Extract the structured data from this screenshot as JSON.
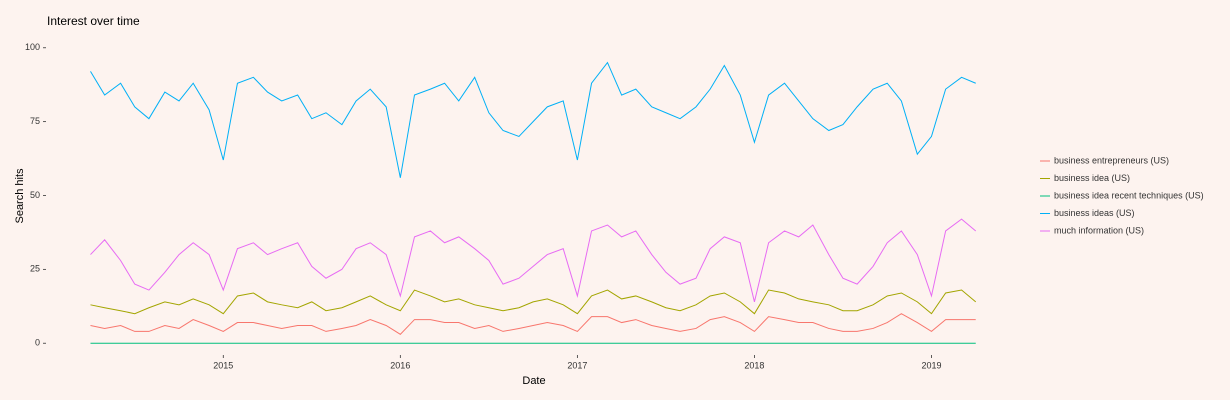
{
  "chart_data": {
    "type": "line",
    "title": "Interest over time",
    "x_label": "Date",
    "y_label": "Search hits",
    "x": [
      2014.25,
      2014.33,
      2014.42,
      2014.5,
      2014.58,
      2014.67,
      2014.75,
      2014.83,
      2014.92,
      2015.0,
      2015.08,
      2015.17,
      2015.25,
      2015.33,
      2015.42,
      2015.5,
      2015.58,
      2015.67,
      2015.75,
      2015.83,
      2015.92,
      2016.0,
      2016.08,
      2016.17,
      2016.25,
      2016.33,
      2016.42,
      2016.5,
      2016.58,
      2016.67,
      2016.75,
      2016.83,
      2016.92,
      2017.0,
      2017.08,
      2017.17,
      2017.25,
      2017.33,
      2017.42,
      2017.5,
      2017.58,
      2017.67,
      2017.75,
      2017.83,
      2017.92,
      2018.0,
      2018.08,
      2018.17,
      2018.25,
      2018.33,
      2018.42,
      2018.5,
      2018.58,
      2018.67,
      2018.75,
      2018.83,
      2018.92,
      2019.0,
      2019.08,
      2019.17,
      2019.25
    ],
    "series": [
      {
        "name": "business entrepreneurs (US)",
        "color": "#F8766D",
        "values": [
          6,
          5,
          6,
          4,
          4,
          6,
          5,
          8,
          6,
          4,
          7,
          7,
          6,
          5,
          6,
          6,
          4,
          5,
          6,
          8,
          6,
          3,
          8,
          8,
          7,
          7,
          5,
          6,
          4,
          5,
          6,
          7,
          6,
          4,
          9,
          9,
          7,
          8,
          6,
          5,
          4,
          5,
          8,
          9,
          7,
          4,
          9,
          8,
          7,
          7,
          5,
          4,
          4,
          5,
          7,
          10,
          7,
          4,
          8,
          8,
          8
        ]
      },
      {
        "name": "business idea (US)",
        "color": "#A3A500",
        "values": [
          13,
          12,
          11,
          10,
          12,
          14,
          13,
          15,
          13,
          10,
          16,
          17,
          14,
          13,
          12,
          14,
          11,
          12,
          14,
          16,
          13,
          11,
          18,
          16,
          14,
          15,
          13,
          12,
          11,
          12,
          14,
          15,
          13,
          10,
          16,
          18,
          15,
          16,
          14,
          12,
          11,
          13,
          16,
          17,
          14,
          10,
          18,
          17,
          15,
          14,
          13,
          11,
          11,
          13,
          16,
          17,
          14,
          10,
          17,
          18,
          14
        ]
      },
      {
        "name": "business idea recent techniques (US)",
        "color": "#00BF7D",
        "values": [
          0,
          0,
          0,
          0,
          0,
          0,
          0,
          0,
          0,
          0,
          0,
          0,
          0,
          0,
          0,
          0,
          0,
          0,
          0,
          0,
          0,
          0,
          0,
          0,
          0,
          0,
          0,
          0,
          0,
          0,
          0,
          0,
          0,
          0,
          0,
          0,
          0,
          0,
          0,
          0,
          0,
          0,
          0,
          0,
          0,
          0,
          0,
          0,
          0,
          0,
          0,
          0,
          0,
          0,
          0,
          0,
          0,
          0,
          0,
          0,
          0
        ]
      },
      {
        "name": "business ideas (US)",
        "color": "#00B0F6",
        "values": [
          92,
          84,
          88,
          80,
          76,
          85,
          82,
          88,
          79,
          62,
          88,
          90,
          85,
          82,
          84,
          76,
          78,
          74,
          82,
          86,
          80,
          56,
          84,
          86,
          88,
          82,
          90,
          78,
          72,
          70,
          75,
          80,
          82,
          62,
          88,
          95,
          84,
          86,
          80,
          78,
          76,
          80,
          86,
          94,
          84,
          68,
          84,
          88,
          82,
          76,
          72,
          74,
          80,
          86,
          88,
          82,
          64,
          70,
          86,
          90,
          88
        ]
      },
      {
        "name": "much information (US)",
        "color": "#E76BF3",
        "values": [
          30,
          35,
          28,
          20,
          18,
          24,
          30,
          34,
          30,
          18,
          32,
          34,
          30,
          32,
          34,
          26,
          22,
          25,
          32,
          34,
          30,
          16,
          36,
          38,
          34,
          36,
          32,
          28,
          20,
          22,
          26,
          30,
          32,
          16,
          38,
          40,
          36,
          38,
          30,
          24,
          20,
          22,
          32,
          36,
          34,
          14,
          34,
          38,
          36,
          40,
          30,
          22,
          20,
          26,
          34,
          38,
          30,
          16,
          38,
          42,
          38
        ]
      }
    ],
    "xlim": [
      2014.01,
      2019.5
    ],
    "ylim": [
      -5,
      105
    ],
    "xticks": [
      2015,
      2016,
      2017,
      2018,
      2019
    ],
    "yticks": [
      0,
      25,
      50,
      75,
      100
    ],
    "grid": false,
    "legend": "right"
  }
}
